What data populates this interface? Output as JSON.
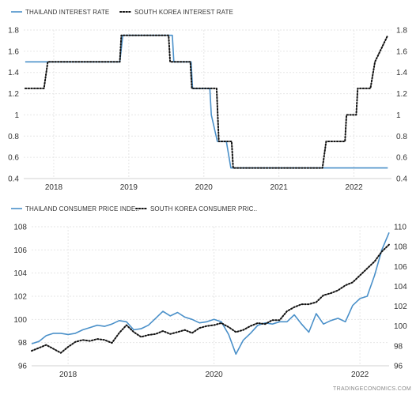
{
  "watermark": "TRADINGECONOMICS.COM",
  "chart_data": [
    {
      "type": "line",
      "legend_position": "top-left",
      "grid": true,
      "x_ticks": [
        "2018",
        "2019",
        "2020",
        "2021",
        "2022"
      ],
      "y_ticks_left": [
        "0.4",
        "0.6",
        "0.8",
        "1",
        "1.2",
        "1.4",
        "1.6",
        "1.8"
      ],
      "y_ticks_right": [
        "0.4",
        "0.6",
        "0.8",
        "1",
        "1.2",
        "1.4",
        "1.6",
        "1.8"
      ],
      "ylim": [
        0.4,
        1.8
      ],
      "xlim": [
        2017.6,
        2022.5
      ],
      "series": [
        {
          "name": "THAILAND INTEREST RATE",
          "color": "#4a90c9",
          "style": "solid",
          "points": [
            [
              2017.62,
              1.5
            ],
            [
              2018.88,
              1.5
            ],
            [
              2018.92,
              1.75
            ],
            [
              2019.58,
              1.75
            ],
            [
              2019.6,
              1.5
            ],
            [
              2019.83,
              1.5
            ],
            [
              2019.85,
              1.25
            ],
            [
              2020.08,
              1.25
            ],
            [
              2020.1,
              1.0
            ],
            [
              2020.18,
              0.75
            ],
            [
              2020.3,
              0.75
            ],
            [
              2020.36,
              0.5
            ],
            [
              2022.45,
              0.5
            ]
          ]
        },
        {
          "name": "SOUTH KOREA INTEREST RATE",
          "color": "#111111",
          "style": "dotted",
          "points": [
            [
              2017.62,
              1.25
            ],
            [
              2017.87,
              1.25
            ],
            [
              2017.92,
              1.5
            ],
            [
              2018.88,
              1.5
            ],
            [
              2018.9,
              1.75
            ],
            [
              2019.53,
              1.75
            ],
            [
              2019.55,
              1.5
            ],
            [
              2019.82,
              1.5
            ],
            [
              2019.84,
              1.25
            ],
            [
              2020.17,
              1.25
            ],
            [
              2020.2,
              0.75
            ],
            [
              2020.37,
              0.75
            ],
            [
              2020.39,
              0.5
            ],
            [
              2021.58,
              0.5
            ],
            [
              2021.63,
              0.75
            ],
            [
              2021.88,
              0.75
            ],
            [
              2021.9,
              1.0
            ],
            [
              2022.03,
              1.0
            ],
            [
              2022.05,
              1.25
            ],
            [
              2022.22,
              1.25
            ],
            [
              2022.28,
              1.5
            ],
            [
              2022.45,
              1.75
            ]
          ]
        }
      ]
    },
    {
      "type": "line",
      "legend_position": "top-left",
      "grid": true,
      "x_ticks": [
        "2018",
        "2020",
        "2022"
      ],
      "y_ticks_left": [
        "96",
        "98",
        "100",
        "102",
        "104",
        "106",
        "108"
      ],
      "y_ticks_right": [
        "96",
        "98",
        "100",
        "102",
        "104",
        "106",
        "108",
        "110"
      ],
      "ylim_left": [
        96,
        108
      ],
      "ylim_right": [
        96,
        110
      ],
      "xlim": [
        2017.5,
        2022.4
      ],
      "series": [
        {
          "name": "THAILAND CONSUMER PRICE INDE..",
          "color": "#4a90c9",
          "style": "solid",
          "axis": "left",
          "points": [
            [
              2017.5,
              97.9
            ],
            [
              2017.6,
              98.1
            ],
            [
              2017.7,
              98.6
            ],
            [
              2017.8,
              98.8
            ],
            [
              2017.9,
              98.8
            ],
            [
              2018.0,
              98.7
            ],
            [
              2018.1,
              98.8
            ],
            [
              2018.2,
              99.1
            ],
            [
              2018.3,
              99.3
            ],
            [
              2018.4,
              99.5
            ],
            [
              2018.5,
              99.4
            ],
            [
              2018.6,
              99.6
            ],
            [
              2018.7,
              99.9
            ],
            [
              2018.8,
              99.8
            ],
            [
              2018.9,
              99.1
            ],
            [
              2019.0,
              99.2
            ],
            [
              2019.1,
              99.5
            ],
            [
              2019.2,
              100.1
            ],
            [
              2019.3,
              100.7
            ],
            [
              2019.4,
              100.3
            ],
            [
              2019.5,
              100.6
            ],
            [
              2019.6,
              100.2
            ],
            [
              2019.7,
              100.0
            ],
            [
              2019.8,
              99.7
            ],
            [
              2019.9,
              99.8
            ],
            [
              2020.0,
              100.0
            ],
            [
              2020.1,
              99.8
            ],
            [
              2020.2,
              98.7
            ],
            [
              2020.3,
              97.0
            ],
            [
              2020.4,
              98.2
            ],
            [
              2020.5,
              98.8
            ],
            [
              2020.6,
              99.5
            ],
            [
              2020.7,
              99.7
            ],
            [
              2020.8,
              99.6
            ],
            [
              2020.9,
              99.8
            ],
            [
              2021.0,
              99.8
            ],
            [
              2021.1,
              100.4
            ],
            [
              2021.2,
              99.6
            ],
            [
              2021.3,
              98.9
            ],
            [
              2021.4,
              100.5
            ],
            [
              2021.5,
              99.6
            ],
            [
              2021.6,
              99.9
            ],
            [
              2021.7,
              100.1
            ],
            [
              2021.8,
              99.8
            ],
            [
              2021.9,
              101.2
            ],
            [
              2022.0,
              101.8
            ],
            [
              2022.1,
              102.0
            ],
            [
              2022.2,
              103.8
            ],
            [
              2022.3,
              106.0
            ],
            [
              2022.4,
              107.5
            ]
          ]
        },
        {
          "name": "SOUTH KOREA CONSUMER PRIC..",
          "color": "#111111",
          "style": "dotted",
          "axis": "right",
          "points": [
            [
              2017.5,
              97.5
            ],
            [
              2017.6,
              97.8
            ],
            [
              2017.7,
              98.1
            ],
            [
              2017.8,
              97.7
            ],
            [
              2017.9,
              97.3
            ],
            [
              2018.0,
              97.9
            ],
            [
              2018.1,
              98.4
            ],
            [
              2018.2,
              98.6
            ],
            [
              2018.3,
              98.5
            ],
            [
              2018.4,
              98.7
            ],
            [
              2018.5,
              98.6
            ],
            [
              2018.6,
              98.3
            ],
            [
              2018.7,
              99.3
            ],
            [
              2018.8,
              100.1
            ],
            [
              2018.9,
              99.4
            ],
            [
              2019.0,
              98.9
            ],
            [
              2019.1,
              99.1
            ],
            [
              2019.2,
              99.2
            ],
            [
              2019.3,
              99.5
            ],
            [
              2019.4,
              99.2
            ],
            [
              2019.5,
              99.4
            ],
            [
              2019.6,
              99.6
            ],
            [
              2019.7,
              99.3
            ],
            [
              2019.8,
              99.8
            ],
            [
              2019.9,
              100.0
            ],
            [
              2020.0,
              100.1
            ],
            [
              2020.1,
              100.3
            ],
            [
              2020.2,
              99.9
            ],
            [
              2020.3,
              99.4
            ],
            [
              2020.4,
              99.6
            ],
            [
              2020.5,
              100.0
            ],
            [
              2020.6,
              100.3
            ],
            [
              2020.7,
              100.2
            ],
            [
              2020.8,
              100.6
            ],
            [
              2020.9,
              100.6
            ],
            [
              2021.0,
              101.5
            ],
            [
              2021.1,
              101.9
            ],
            [
              2021.2,
              102.2
            ],
            [
              2021.3,
              102.2
            ],
            [
              2021.4,
              102.4
            ],
            [
              2021.5,
              103.1
            ],
            [
              2021.6,
              103.3
            ],
            [
              2021.7,
              103.6
            ],
            [
              2021.8,
              104.1
            ],
            [
              2021.9,
              104.4
            ],
            [
              2022.0,
              105.1
            ],
            [
              2022.1,
              105.8
            ],
            [
              2022.2,
              106.5
            ],
            [
              2022.3,
              107.5
            ],
            [
              2022.4,
              108.2
            ]
          ]
        }
      ]
    }
  ]
}
